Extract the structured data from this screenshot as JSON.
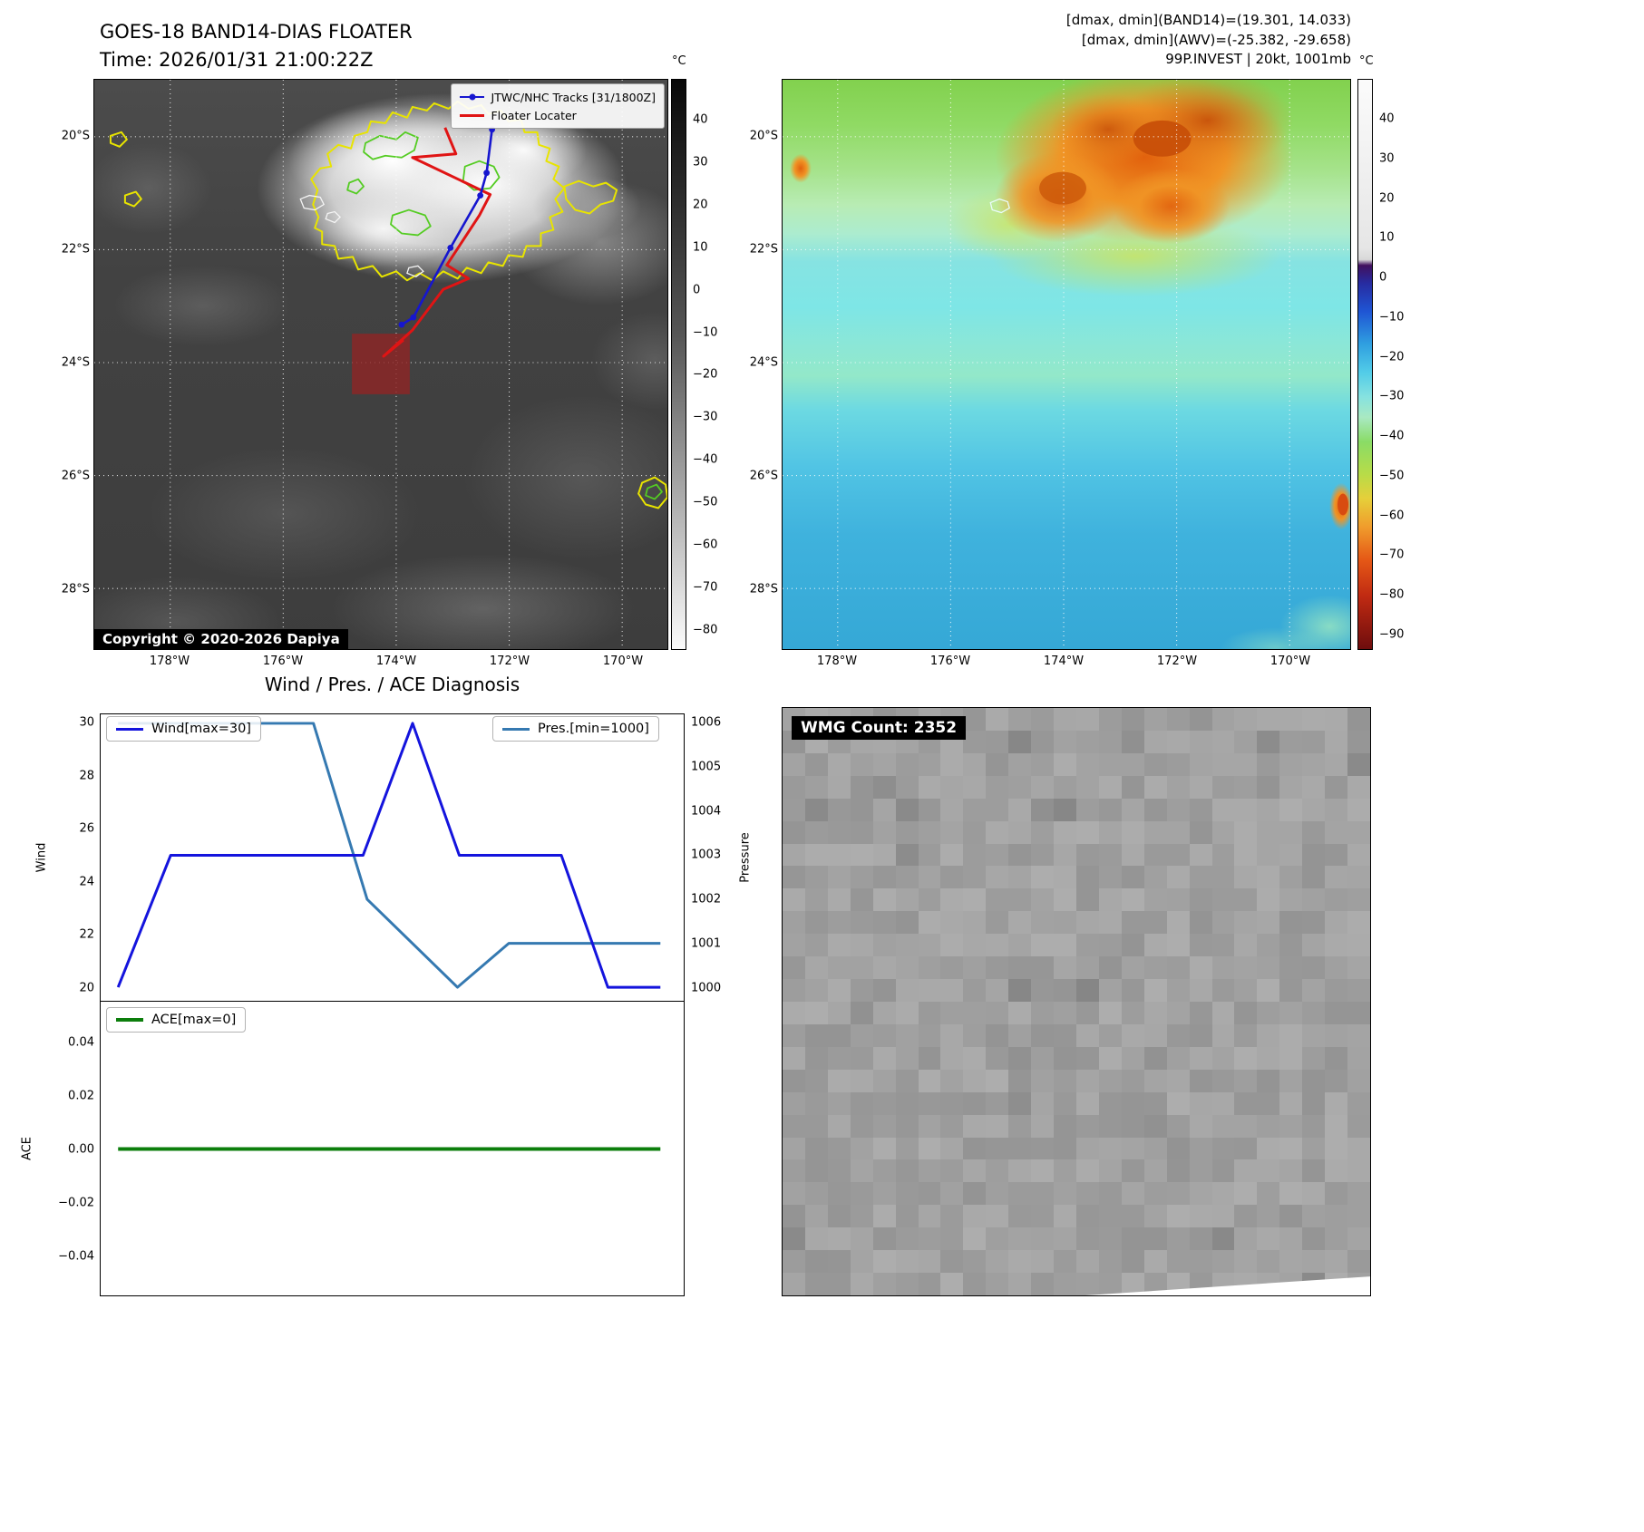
{
  "band14": {
    "title": "GOES-18 BAND14-DIAS FLOATER",
    "time_line": "Time: 2026/01/31 21:00:22Z",
    "legend": {
      "tracks_label": "JTWC/NHC Tracks [31/1800Z]",
      "tracks_color": "#1616cf",
      "floater_label": "Floater Locater",
      "floater_color": "#e01414"
    },
    "copyright": "Copyright © 2020-2026 Dapiya",
    "lat_ticks": [
      "20°S",
      "22°S",
      "24°S",
      "26°S",
      "28°S"
    ],
    "lon_ticks": [
      "178°W",
      "176°W",
      "174°W",
      "172°W",
      "170°W"
    ],
    "colorbar": {
      "unit": "°C",
      "ticks": [
        "40",
        "30",
        "20",
        "10",
        "0",
        "−10",
        "−20",
        "−30",
        "−40",
        "−50",
        "−60",
        "−70",
        "−80"
      ]
    }
  },
  "awv": {
    "info_lines": [
      "[dmax, dmin](BAND14)=(19.301, 14.033)",
      "[dmax, dmin](AWV)=(-25.382, -29.658)",
      "99P.INVEST | 20kt, 1001mb"
    ],
    "lat_ticks": [
      "20°S",
      "22°S",
      "24°S",
      "26°S",
      "28°S"
    ],
    "lon_ticks": [
      "178°W",
      "176°W",
      "174°W",
      "172°W",
      "170°W"
    ],
    "colorbar": {
      "unit": "°C",
      "ticks": [
        "40",
        "30",
        "20",
        "10",
        "0",
        "−10",
        "−20",
        "−30",
        "−40",
        "−50",
        "−60",
        "−70",
        "−80",
        "−90"
      ]
    }
  },
  "diagnosis": {
    "title": "Wind / Pres. / ACE Diagnosis"
  },
  "wmg": {
    "badge": "WMG Count: 2352"
  },
  "chart_data": [
    {
      "id": "wind_pres",
      "type": "line",
      "title": "Wind / Pres. / ACE Diagnosis",
      "x_axis": {
        "label": "",
        "range": [
          0,
          1
        ],
        "tick_labels": []
      },
      "left_axis": {
        "label": "Wind",
        "range": [
          20,
          30
        ],
        "ticks": [
          "30",
          "28",
          "26",
          "24",
          "22",
          "20"
        ]
      },
      "right_axis": {
        "label": "Pressure",
        "range": [
          1000,
          1006
        ],
        "ticks": [
          "1006",
          "1005",
          "1004",
          "1003",
          "1002",
          "1001",
          "1000"
        ]
      },
      "grid": false,
      "series": [
        {
          "name": "Wind[max=30]",
          "axis": "left",
          "color": "#1414dd",
          "legend_position": "upper left",
          "x": [
            0.03,
            0.12,
            0.45,
            0.535,
            0.615,
            0.79,
            0.87,
            0.96
          ],
          "y": [
            20,
            25,
            25,
            30,
            25,
            25,
            20,
            20
          ]
        },
        {
          "name": "Pres.[min=1000]",
          "axis": "right",
          "color": "#3579b1",
          "legend_position": "upper right",
          "x": [
            0.03,
            0.365,
            0.457,
            0.612,
            0.7,
            0.96
          ],
          "y": [
            1006,
            1006,
            1002,
            1000,
            1001,
            1001
          ]
        }
      ]
    },
    {
      "id": "ace",
      "type": "line",
      "left_axis": {
        "label": "ACE",
        "range": [
          -0.05,
          0.05
        ],
        "ticks": [
          "0.04",
          "0.02",
          "0.00",
          "−0.02",
          "−0.04"
        ]
      },
      "grid": false,
      "series": [
        {
          "name": "ACE[max=0]",
          "axis": "left",
          "color": "#0c7e0c",
          "legend_position": "upper left",
          "x": [
            0.03,
            0.96
          ],
          "y": [
            0,
            0
          ]
        }
      ]
    }
  ]
}
